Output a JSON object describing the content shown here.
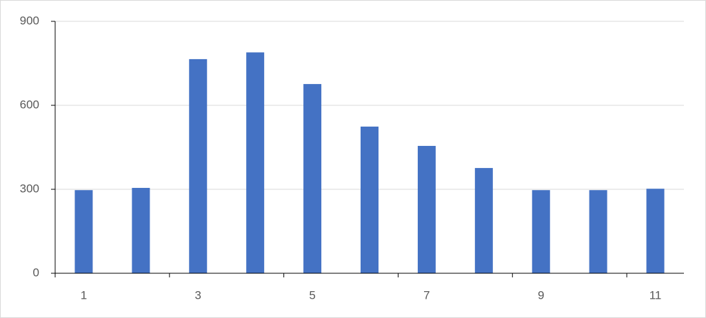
{
  "chart_data": {
    "type": "bar",
    "categories": [
      "1",
      null,
      "3",
      null,
      "5",
      null,
      "7",
      null,
      "9",
      null,
      "11"
    ],
    "values": [
      297,
      305,
      765,
      789,
      676,
      524,
      455,
      376,
      297,
      297,
      302
    ],
    "color": "#4472c4",
    "ylim": [
      0,
      900
    ],
    "yticks": [
      0,
      300,
      600,
      900
    ],
    "grid": true
  }
}
